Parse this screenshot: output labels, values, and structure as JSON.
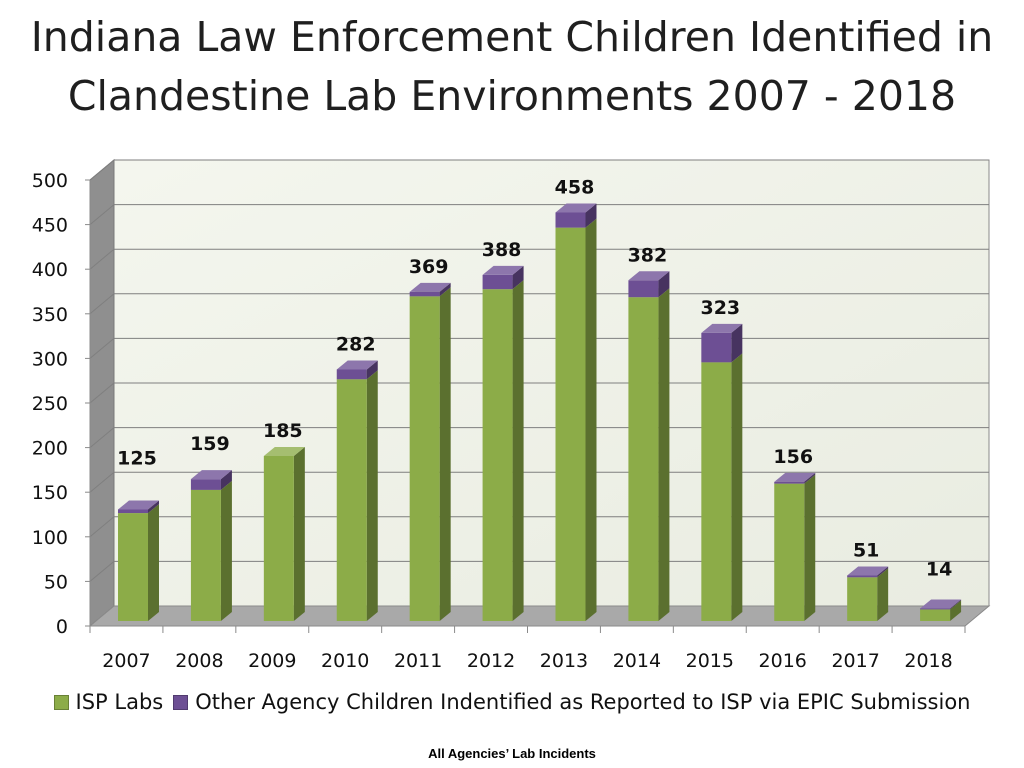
{
  "chart_data": {
    "type": "bar",
    "stacked": true,
    "title_lines": [
      "Indiana Law Enforcement Children Identified in",
      "Clandestine Lab Environments 2007 - 2018"
    ],
    "categories": [
      "2007",
      "2008",
      "2009",
      "2010",
      "2011",
      "2012",
      "2013",
      "2014",
      "2015",
      "2016",
      "2017",
      "2018"
    ],
    "series": [
      {
        "name": "ISP Labs",
        "color": "#8cac48",
        "values": [
          121,
          147,
          185,
          271,
          364,
          372,
          441,
          363,
          290,
          154,
          49,
          13
        ]
      },
      {
        "name": "Other Agency Children Indentified as Reported to ISP via EPIC Submission",
        "color": "#6d4f94",
        "values": [
          4,
          12,
          0,
          11,
          5,
          16,
          17,
          19,
          33,
          2,
          2,
          1
        ]
      }
    ],
    "totals": [
      125,
      159,
      185,
      282,
      369,
      388,
      458,
      382,
      323,
      156,
      51,
      14
    ],
    "ylim": [
      0,
      500
    ],
    "yticks": [
      0,
      50,
      100,
      150,
      200,
      250,
      300,
      350,
      400,
      450,
      500
    ],
    "grid": true,
    "legend_position": "bottom",
    "xlabel": "",
    "ylabel": ""
  },
  "footnote": "All Agencies’ Lab Incidents"
}
